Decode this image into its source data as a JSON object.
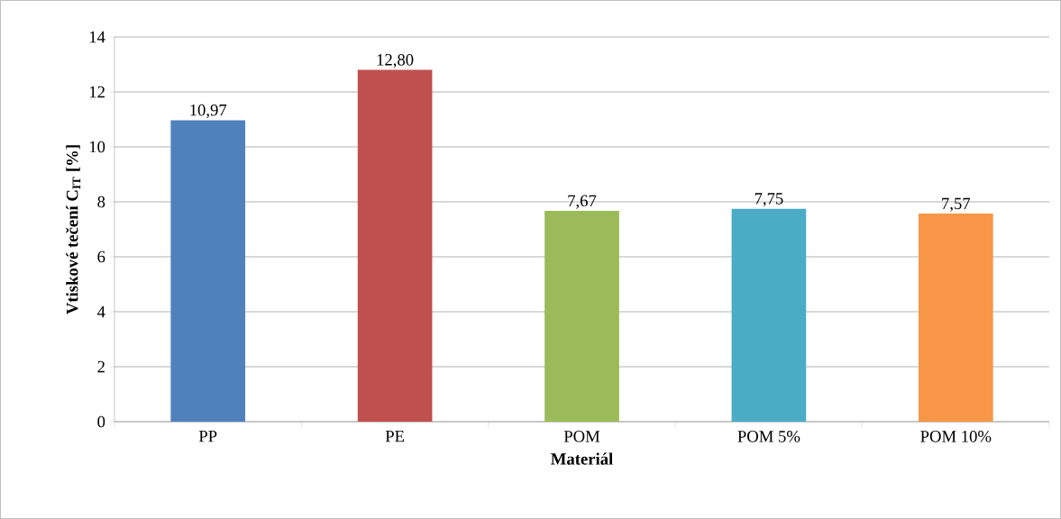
{
  "chart_data": {
    "type": "bar",
    "xlabel": "Materiál",
    "ylabel": "**Vtiskové tečení C$_{IT}$ [%]**",
    "categories": [
      "PP",
      "PE",
      "POM",
      "POM 5%",
      "POM 10%"
    ],
    "values": [
      10.97,
      12.8,
      7.67,
      7.75,
      7.57
    ],
    "value_labels": [
      "10,97",
      "12,80",
      "7,67",
      "7,75",
      "7,57"
    ],
    "colors": [
      "#4f81bd",
      "#c0504d",
      "#9bbb59",
      "#4bacc6",
      "#f79646"
    ],
    "ylim": [
      0,
      14
    ],
    "yticks": [
      0,
      2,
      4,
      6,
      8,
      10,
      12,
      14
    ],
    "grid": "y"
  }
}
